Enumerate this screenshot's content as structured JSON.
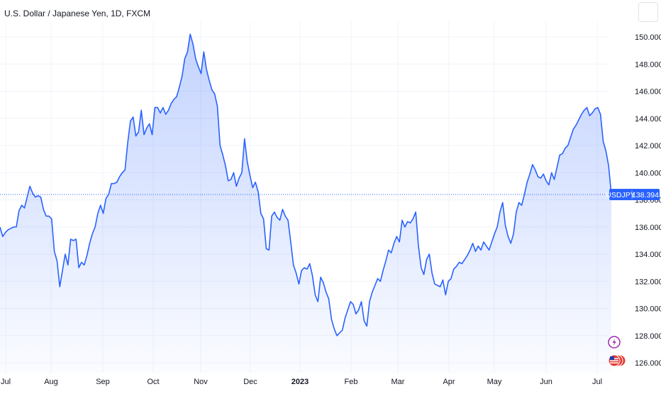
{
  "header": {
    "title": "U.S. Dollar / Japanese Yen, 1D, FXCM"
  },
  "price_tag": {
    "symbol": "USDJPY",
    "value": "138.394"
  },
  "icons": [
    "flash-icon",
    "us-flag-icon"
  ],
  "colors": {
    "line": "#2962ff",
    "fill_top": "#cfdcfc",
    "axis_text": "#131722",
    "tag_bg": "#2962ff",
    "grid": "#f0f3fa"
  },
  "chart_data": {
    "type": "area",
    "title": "U.S. Dollar / Japanese Yen, 1D, FXCM",
    "xlabel": "",
    "ylabel": "",
    "grid": true,
    "ylim": [
      125.5,
      152.0
    ],
    "yticks": [
      "126.000",
      "128.000",
      "130.000",
      "132.000",
      "134.000",
      "136.000",
      "138.000",
      "140.000",
      "142.000",
      "144.000",
      "146.000",
      "148.000",
      "150.000"
    ],
    "xticks": [
      "Jul",
      "Aug",
      "Sep",
      "Oct",
      "Nov",
      "Dec",
      "2023",
      "Feb",
      "Mar",
      "Apr",
      "May",
      "Jun",
      "Jul"
    ],
    "last_value": 138.394,
    "series": [
      {
        "values": [
          136.0,
          135.3,
          135.6,
          135.8,
          135.9,
          136.0,
          136.0,
          137.2,
          137.6,
          137.4,
          138.2,
          139.0,
          138.5,
          138.2,
          138.3,
          138.2,
          137.3,
          136.8,
          136.8,
          136.6,
          134.2,
          133.5,
          131.6,
          132.8,
          134.0,
          133.2,
          135.1,
          135.0,
          135.1,
          133.0,
          133.4,
          133.2,
          133.9,
          134.8,
          135.5,
          136.0,
          137.0,
          137.6,
          137.0,
          138.1,
          138.4,
          139.2,
          139.2,
          139.3,
          139.7,
          140.0,
          140.2,
          142.2,
          143.8,
          144.1,
          142.7,
          143.0,
          144.6,
          142.8,
          143.3,
          143.6,
          142.8,
          144.8,
          144.8,
          144.4,
          144.8,
          144.3,
          144.6,
          145.1,
          145.4,
          145.6,
          146.3,
          147.1,
          148.4,
          148.9,
          150.2,
          149.5,
          148.4,
          147.8,
          147.3,
          148.9,
          147.6,
          146.8,
          146.1,
          145.8,
          144.9,
          142.0,
          141.3,
          140.5,
          139.4,
          139.5,
          140.0,
          139.0,
          139.6,
          140.0,
          142.5,
          140.8,
          139.8,
          138.9,
          139.3,
          138.6,
          137.0,
          136.6,
          134.4,
          134.3,
          136.8,
          137.1,
          136.7,
          136.5,
          137.3,
          136.8,
          136.5,
          134.9,
          133.2,
          132.6,
          131.8,
          132.8,
          133.0,
          132.9,
          133.3,
          132.4,
          131.0,
          130.5,
          132.3,
          131.9,
          131.2,
          130.7,
          129.2,
          128.5,
          128.0,
          128.2,
          128.4,
          129.3,
          129.9,
          130.5,
          130.3,
          129.6,
          129.9,
          130.5,
          129.1,
          128.7,
          130.5,
          131.2,
          131.7,
          132.2,
          132.0,
          132.8,
          133.5,
          134.3,
          134.1,
          134.8,
          135.3,
          134.9,
          136.5,
          136.0,
          136.4,
          136.3,
          136.6,
          137.1,
          134.6,
          133.0,
          132.5,
          133.6,
          134.0,
          132.6,
          131.8,
          131.7,
          131.6,
          132.1,
          131.0,
          132.0,
          132.2,
          132.9,
          133.1,
          133.4,
          133.3,
          133.6,
          133.9,
          134.3,
          134.8,
          134.2,
          134.6,
          134.3,
          134.9,
          134.6,
          134.3,
          134.9,
          135.5,
          136.0,
          137.1,
          137.8,
          136.1,
          135.3,
          134.8,
          135.5,
          137.1,
          137.8,
          137.6,
          138.4,
          139.3,
          139.9,
          140.6,
          140.2,
          139.7,
          139.6,
          139.9,
          139.4,
          139.1,
          140.0,
          139.5,
          140.4,
          141.3,
          141.4,
          141.8,
          142.0,
          142.6,
          143.2,
          143.5,
          143.9,
          144.3,
          144.6,
          144.8,
          144.2,
          144.4,
          144.7,
          144.8,
          144.3,
          142.3,
          141.6,
          140.5,
          138.394
        ]
      }
    ]
  }
}
